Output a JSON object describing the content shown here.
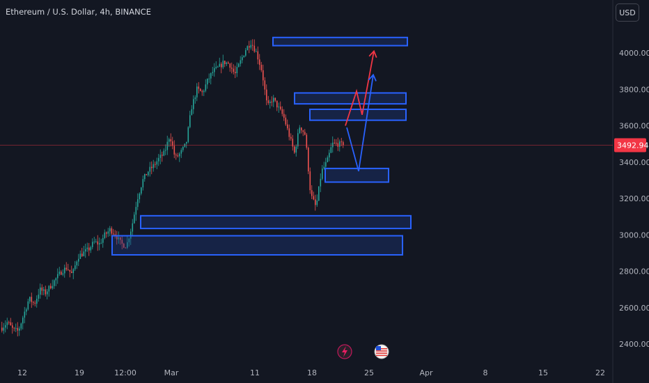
{
  "header": {
    "title": "Ethereum / U.S. Dollar, 4h, BINANCE",
    "currency": "USD"
  },
  "colors": {
    "background": "#131722",
    "up": "#26a69a",
    "down": "#ef5350",
    "zone_stroke": "#2962ff",
    "zone_fill": "#1e3a8a",
    "projection_red": "#f23645",
    "projection_blue": "#2962ff",
    "last_price_tag": "#f23645",
    "axis_text": "#b2b5be"
  },
  "events": [
    {
      "icon": "lightning-icon"
    },
    {
      "icon": "us-flag-icon"
    }
  ],
  "chart_data": {
    "type": "candlestick",
    "symbol": "ETH/USD",
    "timeframe": "4h",
    "exchange": "BINANCE",
    "ylim": [
      2310,
      4170
    ],
    "y_ticks": [
      "4000.00",
      "3800.00",
      "3600.00",
      "3400.00",
      "3200.00",
      "3000.00",
      "2800.00",
      "2600.00",
      "2400.00"
    ],
    "y_tick_values": [
      4000,
      3800,
      3600,
      3400,
      3200,
      3000,
      2800,
      2600,
      2400
    ],
    "x_ticks": [
      "12",
      "19",
      "12:00",
      "Mar",
      "11",
      "18",
      "25",
      "Apr",
      "8",
      "15",
      "22"
    ],
    "last_price": 3492.94,
    "last_price_label": "3492.94",
    "price_path": [
      [
        2490,
        2520
      ],
      [
        2480,
        2470
      ],
      [
        2560,
        2650
      ],
      [
        2620,
        2700
      ],
      [
        2680,
        2720
      ],
      [
        2760,
        2800
      ],
      [
        2820,
        2780
      ],
      [
        2880,
        2900
      ],
      [
        2920,
        2960
      ],
      [
        2950,
        3000
      ],
      [
        3030,
        3000
      ],
      [
        2950,
        2940
      ],
      [
        3050,
        3200
      ],
      [
        3300,
        3350
      ],
      [
        3380,
        3420
      ],
      [
        3450,
        3550
      ],
      [
        3420,
        3450
      ],
      [
        3500,
        3700
      ],
      [
        3800,
        3780
      ],
      [
        3850,
        3900
      ],
      [
        3920,
        3950
      ],
      [
        3940,
        3880
      ],
      [
        3950,
        4020
      ],
      [
        4060,
        4000
      ],
      [
        3900,
        3700
      ],
      [
        3750,
        3700
      ],
      [
        3650,
        3550
      ],
      [
        3450,
        3600
      ],
      [
        3550,
        3220
      ],
      [
        3150,
        3350
      ],
      [
        3400,
        3500
      ],
      [
        3500,
        3492.94
      ]
    ],
    "zones": [
      {
        "price_low": 4040,
        "price_high": 4085
      },
      {
        "price_low": 3720,
        "price_high": 3780
      },
      {
        "price_low": 3630,
        "price_high": 3690
      },
      {
        "price_low": 3290,
        "price_high": 3365
      },
      {
        "price_low": 3035,
        "price_high": 3105
      },
      {
        "price_low": 2890,
        "price_high": 2995
      }
    ],
    "projections": [
      {
        "color": "red",
        "prices": [
          3600,
          3790,
          3660,
          4010
        ]
      },
      {
        "color": "blue",
        "prices": [
          3590,
          3350,
          3880
        ]
      }
    ]
  }
}
